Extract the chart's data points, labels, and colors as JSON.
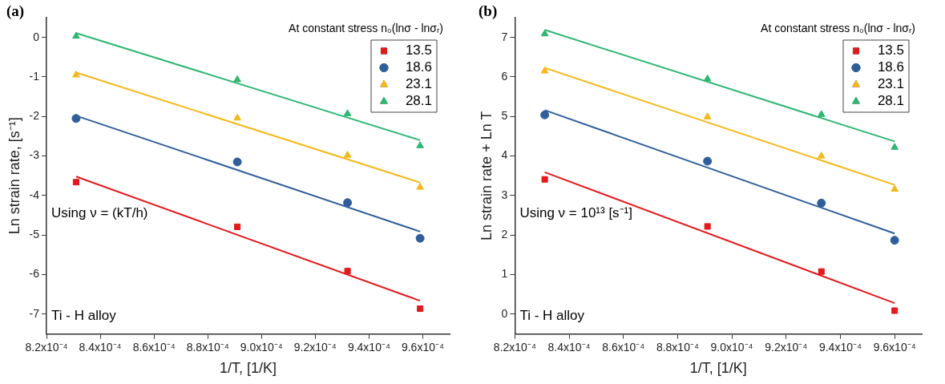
{
  "chart_data": [
    {
      "type": "scatter",
      "title": "(a)",
      "xlabel": "1/T, [1/K]",
      "ylabel": "Ln strain rate, [s⁻¹]",
      "legend_title": "At constant stress n₀(lnσ - lnσᵣ)",
      "legend": "top right",
      "grid": false,
      "xlim": [
        0.00082,
        0.00097
      ],
      "ylim": [
        -7.5,
        0.5
      ],
      "xticks": [
        {
          "value": 0.00082,
          "label": "8.2x10⁻⁴"
        },
        {
          "value": 0.00084,
          "label": "8.4x10⁻⁴"
        },
        {
          "value": 0.00086,
          "label": "8.6x10⁻⁴"
        },
        {
          "value": 0.00088,
          "label": "8.8x10⁻⁴"
        },
        {
          "value": 0.0009,
          "label": "9.0x10⁻⁴"
        },
        {
          "value": 0.00092,
          "label": "9.2x10⁻⁴"
        },
        {
          "value": 0.00094,
          "label": "9.4x10⁻⁴"
        },
        {
          "value": 0.00096,
          "label": "9.6x10⁻⁴"
        }
      ],
      "yticks": [
        -7,
        -6,
        -5,
        -4,
        -3,
        -2,
        -1,
        0
      ],
      "annotations": [
        "Using ν = (kT/h)",
        "Ti - H alloy"
      ],
      "series": [
        {
          "name": "13.5",
          "type": "scatter",
          "marker": "square",
          "color": "#e31a1c",
          "x": [
            0.000831,
            0.000891,
            0.000932,
            0.000959
          ],
          "values": [
            -3.66,
            -4.79,
            -5.91,
            -6.86
          ]
        },
        {
          "name": "18.6",
          "type": "scatter",
          "marker": "circle",
          "color": "#2f5f9a",
          "x": [
            0.000831,
            0.000891,
            0.000932,
            0.000959
          ],
          "values": [
            -2.05,
            -3.15,
            -4.18,
            -5.08
          ]
        },
        {
          "name": "23.1",
          "type": "scatter",
          "marker": "triangle",
          "color": "#f4b81a",
          "x": [
            0.000831,
            0.000891,
            0.000932,
            0.000959
          ],
          "values": [
            -0.95,
            -2.04,
            -2.98,
            -3.79
          ]
        },
        {
          "name": "28.1",
          "type": "scatter",
          "marker": "triangle",
          "color": "#2fb673",
          "x": [
            0.000831,
            0.000891,
            0.000932,
            0.000959
          ],
          "values": [
            0.03,
            -1.07,
            -1.93,
            -2.74
          ]
        },
        {
          "type": "line",
          "marker": "none",
          "color": "#e31a1c",
          "x": [
            0.000831,
            0.000959
          ],
          "values": [
            -3.52,
            -6.66
          ]
        },
        {
          "type": "line",
          "marker": "none",
          "color": "#2f5f9a",
          "x": [
            0.000831,
            0.000959
          ],
          "values": [
            -1.98,
            -4.91
          ]
        },
        {
          "type": "line",
          "marker": "none",
          "color": "#f4b81a",
          "x": [
            0.000831,
            0.000959
          ],
          "values": [
            -0.89,
            -3.67
          ]
        },
        {
          "type": "line",
          "marker": "none",
          "color": "#2fb673",
          "x": [
            0.000831,
            0.000959
          ],
          "values": [
            0.11,
            -2.6
          ]
        }
      ]
    },
    {
      "type": "scatter",
      "title": "(b)",
      "xlabel": "1/T, [1/K]",
      "ylabel": "Ln strain rate + Ln T",
      "legend_title": "At constant stress n₀(lnσ - lnσᵣ)",
      "legend": "top right",
      "grid": false,
      "xlim": [
        0.00082,
        0.00097
      ],
      "ylim": [
        -0.5,
        7.5
      ],
      "xticks": [
        {
          "value": 0.00082,
          "label": "8.2x10⁻⁴"
        },
        {
          "value": 0.00084,
          "label": "8.4x10⁻⁴"
        },
        {
          "value": 0.00086,
          "label": "8.6x10⁻⁴"
        },
        {
          "value": 0.00088,
          "label": "8.8x10⁻⁴"
        },
        {
          "value": 0.0009,
          "label": "9.0x10⁻⁴"
        },
        {
          "value": 0.00092,
          "label": "9.2x10⁻⁴"
        },
        {
          "value": 0.00094,
          "label": "9.4x10⁻⁴"
        },
        {
          "value": 0.00096,
          "label": "9.6x10⁻⁴"
        }
      ],
      "yticks": [
        0,
        1,
        2,
        3,
        4,
        5,
        6,
        7
      ],
      "annotations": [
        "Using ν = 10¹³ [s⁻¹]",
        "Ti - H alloy"
      ],
      "series": [
        {
          "name": "13.5",
          "type": "scatter",
          "marker": "square",
          "color": "#e31a1c",
          "x": [
            0.000831,
            0.000891,
            0.000933,
            0.00096
          ],
          "values": [
            3.41,
            2.22,
            1.08,
            0.09
          ]
        },
        {
          "name": "18.6",
          "type": "scatter",
          "marker": "circle",
          "color": "#2f5f9a",
          "x": [
            0.000831,
            0.000891,
            0.000933,
            0.00096
          ],
          "values": [
            5.04,
            3.87,
            2.81,
            1.87
          ]
        },
        {
          "name": "23.1",
          "type": "scatter",
          "marker": "triangle",
          "color": "#f4b81a",
          "x": [
            0.000831,
            0.000891,
            0.000933,
            0.00096
          ],
          "values": [
            6.15,
            4.99,
            4.0,
            3.16
          ]
        },
        {
          "name": "28.1",
          "type": "scatter",
          "marker": "triangle",
          "color": "#2fb673",
          "x": [
            0.000831,
            0.000891,
            0.000933,
            0.00096
          ],
          "values": [
            7.09,
            5.95,
            5.05,
            4.22
          ]
        },
        {
          "type": "line",
          "marker": "none",
          "color": "#e31a1c",
          "x": [
            0.000831,
            0.00096
          ],
          "values": [
            3.59,
            0.28
          ]
        },
        {
          "type": "line",
          "marker": "none",
          "color": "#2f5f9a",
          "x": [
            0.000831,
            0.00096
          ],
          "values": [
            5.16,
            2.04
          ]
        },
        {
          "type": "line",
          "marker": "none",
          "color": "#f4b81a",
          "x": [
            0.000831,
            0.00096
          ],
          "values": [
            6.23,
            3.27
          ]
        },
        {
          "type": "line",
          "marker": "none",
          "color": "#2fb673",
          "x": [
            0.000831,
            0.00096
          ],
          "values": [
            7.19,
            4.37
          ]
        }
      ]
    }
  ]
}
